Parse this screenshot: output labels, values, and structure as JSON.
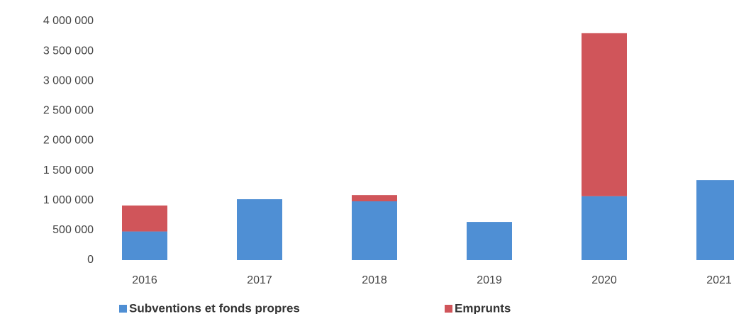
{
  "chart_data": {
    "type": "bar",
    "stacked": true,
    "categories": [
      "2016",
      "2017",
      "2018",
      "2019",
      "2020",
      "2021"
    ],
    "series": [
      {
        "name": "Subventions et fonds propres",
        "color": "#4f8fd4",
        "values": [
          480000,
          1020000,
          985000,
          640000,
          1070000,
          1340000
        ]
      },
      {
        "name": "Emprunts",
        "color": "#d0555a",
        "values": [
          435000,
          0,
          105000,
          0,
          2730000,
          0
        ]
      }
    ],
    "ylim": [
      0,
      4000000
    ],
    "yticks": [
      {
        "value": 0,
        "label": "0"
      },
      {
        "value": 500000,
        "label": "500 000"
      },
      {
        "value": 1000000,
        "label": "1 000 000"
      },
      {
        "value": 1500000,
        "label": "1 500 000"
      },
      {
        "value": 2000000,
        "label": "2 000 000"
      },
      {
        "value": 2500000,
        "label": "2 500 000"
      },
      {
        "value": 3000000,
        "label": "3 000 000"
      },
      {
        "value": 3500000,
        "label": "3 500 000"
      },
      {
        "value": 4000000,
        "label": "4 000 000"
      }
    ],
    "grid": false,
    "legend": "bottom"
  }
}
